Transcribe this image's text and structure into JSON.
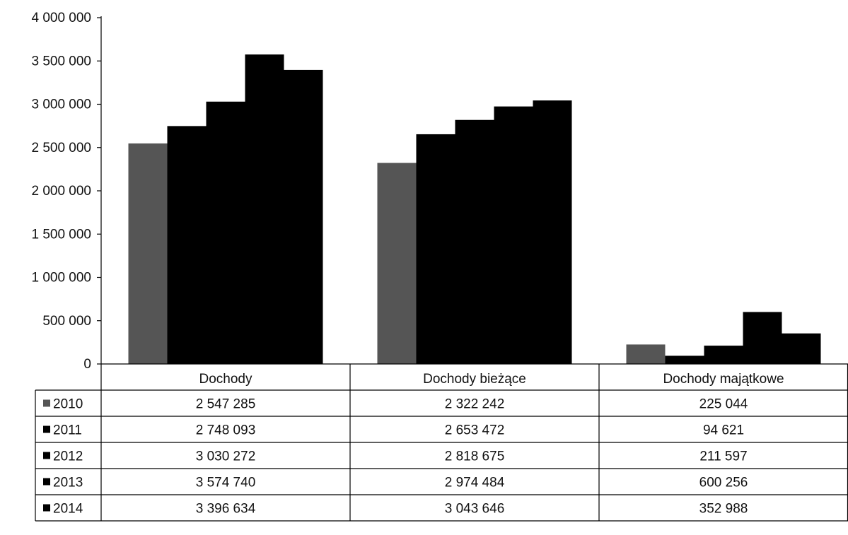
{
  "chart_data": {
    "type": "bar",
    "categories": [
      "Dochody",
      "Dochody bieżące",
      "Dochody majątkowe"
    ],
    "series": [
      {
        "name": "2010",
        "values": [
          2547285,
          2322242,
          225044
        ],
        "color": "#555555",
        "data_labels": [
          "2 547 285",
          "2 322 242",
          "225 044"
        ]
      },
      {
        "name": "2011",
        "values": [
          2748093,
          2653472,
          94621
        ],
        "color": "#000000",
        "data_labels": [
          "2 748 093",
          "2 653 472",
          "94 621"
        ]
      },
      {
        "name": "2012",
        "values": [
          3030272,
          2818675,
          211597
        ],
        "color": "#000000",
        "data_labels": [
          "3 030 272",
          "2 818 675",
          "211 597"
        ]
      },
      {
        "name": "2013",
        "values": [
          3574740,
          2974484,
          600256
        ],
        "color": "#000000",
        "data_labels": [
          "3 574 740",
          "2 974 484",
          "600 256"
        ]
      },
      {
        "name": "2014",
        "values": [
          3396634,
          3043646,
          352988
        ],
        "color": "#000000",
        "data_labels": [
          "3 396 634",
          "3 043 646",
          "352 988"
        ]
      }
    ],
    "ylim": [
      0,
      4000000
    ],
    "yticks": [
      0,
      500000,
      1000000,
      1500000,
      2000000,
      2500000,
      3000000,
      3500000,
      4000000
    ],
    "ytick_labels": [
      "0",
      "500 000",
      "1 000 000",
      "1 500 000",
      "2 000 000",
      "2 500 000",
      "3 000 000",
      "3 500 000",
      "4 000 000"
    ],
    "legend_placement": "data-table-left",
    "grid": false
  }
}
